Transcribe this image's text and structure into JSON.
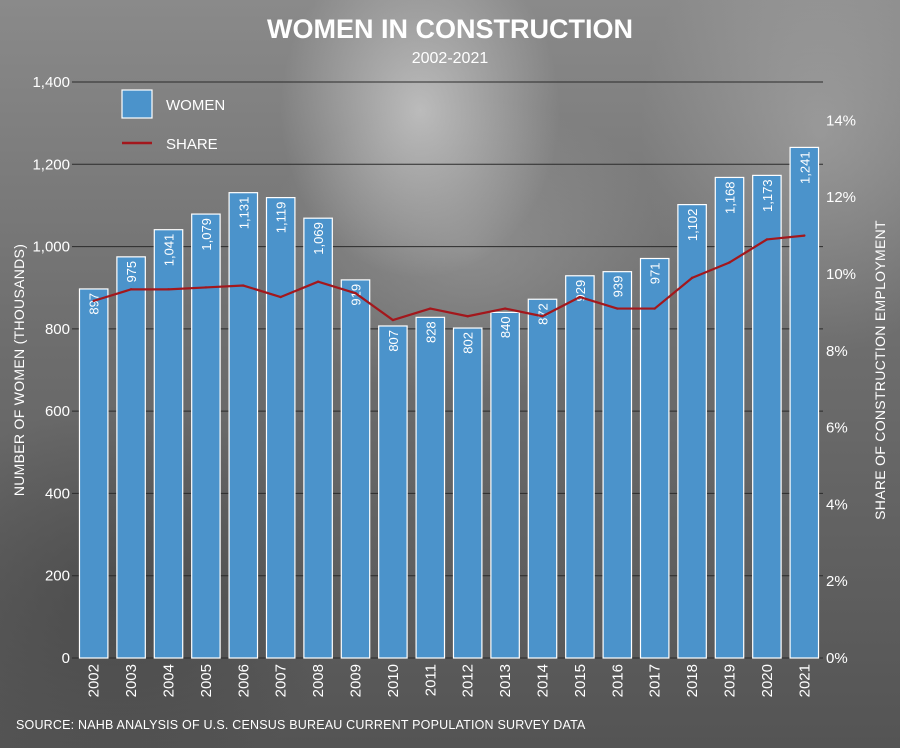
{
  "colors": {
    "bar": "#4b93cb",
    "bar_stroke": "#ffffff",
    "line": "#a3171c",
    "grid": "#2b2b2b",
    "text": "#ffffff"
  },
  "chart_data": {
    "type": "bar",
    "title": "WOMEN IN CONSTRUCTION",
    "subtitle": "2002-2021",
    "categories": [
      "2002",
      "2003",
      "2004",
      "2005",
      "2006",
      "2007",
      "2008",
      "2009",
      "2010",
      "2011",
      "2012",
      "2013",
      "2014",
      "2015",
      "2016",
      "2017",
      "2018",
      "2019",
      "2020",
      "2021"
    ],
    "series": [
      {
        "name": "WOMEN",
        "type": "bar",
        "axis": "left",
        "values": [
          897,
          975,
          1041,
          1079,
          1131,
          1119,
          1069,
          919,
          807,
          828,
          802,
          840,
          872,
          929,
          939,
          971,
          1102,
          1168,
          1173,
          1241
        ],
        "labels": [
          "897",
          "975",
          "1,041",
          "1,079",
          "1,131",
          "1,119",
          "1,069",
          "919",
          "807",
          "828",
          "802",
          "840",
          "872",
          "929",
          "939",
          "971",
          "1,102",
          "1,168",
          "1,173",
          "1,241"
        ]
      },
      {
        "name": "SHARE",
        "type": "line",
        "axis": "right",
        "values": [
          9.3,
          9.6,
          9.6,
          9.65,
          9.7,
          9.4,
          9.8,
          9.5,
          8.8,
          9.1,
          8.9,
          9.1,
          8.9,
          9.4,
          9.1,
          9.1,
          9.9,
          10.3,
          10.9,
          11.0
        ]
      }
    ],
    "ylabel": "NUMBER OF WOMEN (THOUSANDS)",
    "ylim": [
      0,
      1400
    ],
    "yticks": [
      "0",
      "200",
      "400",
      "600",
      "800",
      "1,000",
      "1,200",
      "1,400"
    ],
    "y2label": "SHARE OF CONSTRUCTION EMPLOYMENT",
    "y2lim": [
      0,
      15
    ],
    "y2ticks": [
      "0%",
      "2%",
      "4%",
      "6%",
      "8%",
      "10%",
      "12%",
      "14%"
    ],
    "legend_position": "top-left",
    "grid": true,
    "source": "SOURCE: NAHB ANALYSIS OF U.S. CENSUS BUREAU CURRENT POPULATION SURVEY DATA"
  }
}
